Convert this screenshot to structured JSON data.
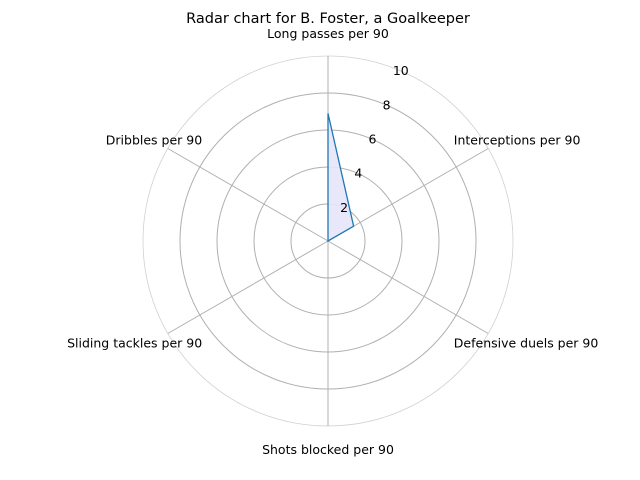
{
  "chart_data": {
    "type": "radar",
    "title": "Radar chart for B. Foster, a Goalkeeper",
    "categories": [
      "Long passes per 90",
      "Interceptions per 90",
      "Defensive duels per 90",
      "Shots blocked per 90",
      "Sliding tackles per 90",
      "Dribbles per 90"
    ],
    "series": [
      {
        "values": [
          6.9,
          1.6,
          0.0,
          0.0,
          0.0,
          0.0
        ],
        "line_color": "#1f77b4",
        "fill_color": "#e6e6fa"
      }
    ],
    "rlim": [
      0,
      10
    ],
    "r_ticks": [
      "2",
      "4",
      "6",
      "8",
      "10"
    ],
    "grid": true
  }
}
